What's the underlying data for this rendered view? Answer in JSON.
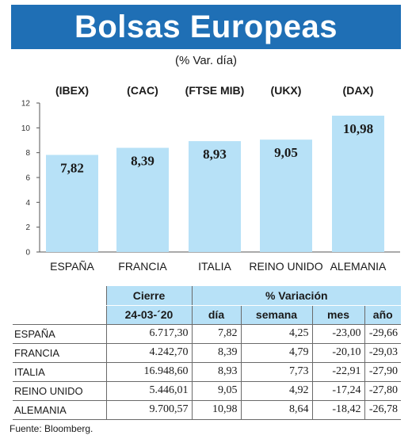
{
  "title": "Bolsas Europeas",
  "subtitle": "(% Var. día)",
  "chart_data": {
    "type": "bar",
    "title": "Bolsas Europeas",
    "subtitle": "(% Var. día)",
    "index_labels": [
      "(IBEX)",
      "(CAC)",
      "(FTSE MIB)",
      "(UKX)",
      "(DAX)"
    ],
    "categories": [
      "ESPAÑA",
      "FRANCIA",
      "ITALIA",
      "REINO UNIDO",
      "ALEMANIA"
    ],
    "values": [
      7.82,
      8.39,
      8.93,
      9.05,
      10.98
    ],
    "value_labels": [
      "7,82",
      "8,39",
      "8,93",
      "9,05",
      "10,98"
    ],
    "ylim": [
      0,
      12
    ],
    "yticks": [
      "0",
      "2",
      "4",
      "6",
      "8",
      "10",
      "12"
    ],
    "grid": false,
    "bar_color": "#b7e1f7"
  },
  "table": {
    "group_headers": {
      "cierre": "Cierre",
      "variacion": "% Variación"
    },
    "sub_headers": {
      "date": "24-03-´20",
      "dia": "día",
      "semana": "semana",
      "mes": "mes",
      "ano": "año"
    },
    "rows": [
      {
        "country": "ESPAÑA",
        "cierre": "6.717,30",
        "dia": "7,82",
        "semana": "4,25",
        "mes": "-23,00",
        "ano": "-29,66"
      },
      {
        "country": "FRANCIA",
        "cierre": "4.242,70",
        "dia": "8,39",
        "semana": "4,79",
        "mes": "-20,10",
        "ano": "-29,03"
      },
      {
        "country": "ITALIA",
        "cierre": "16.948,60",
        "dia": "8,93",
        "semana": "7,73",
        "mes": "-22,91",
        "ano": "-27,90"
      },
      {
        "country": "REINO UNIDO",
        "cierre": "5.446,01",
        "dia": "9,05",
        "semana": "4,92",
        "mes": "-17,24",
        "ano": "-27,80"
      },
      {
        "country": "ALEMANIA",
        "cierre": "9.700,57",
        "dia": "10,98",
        "semana": "8,64",
        "mes": "-18,42",
        "ano": "-26,78"
      }
    ]
  },
  "source": "Fuente: Bloomberg.",
  "colors": {
    "title_bg": "#1f6fb5",
    "title_text": "#ffffff",
    "header_bg": "#b7e1f7"
  }
}
